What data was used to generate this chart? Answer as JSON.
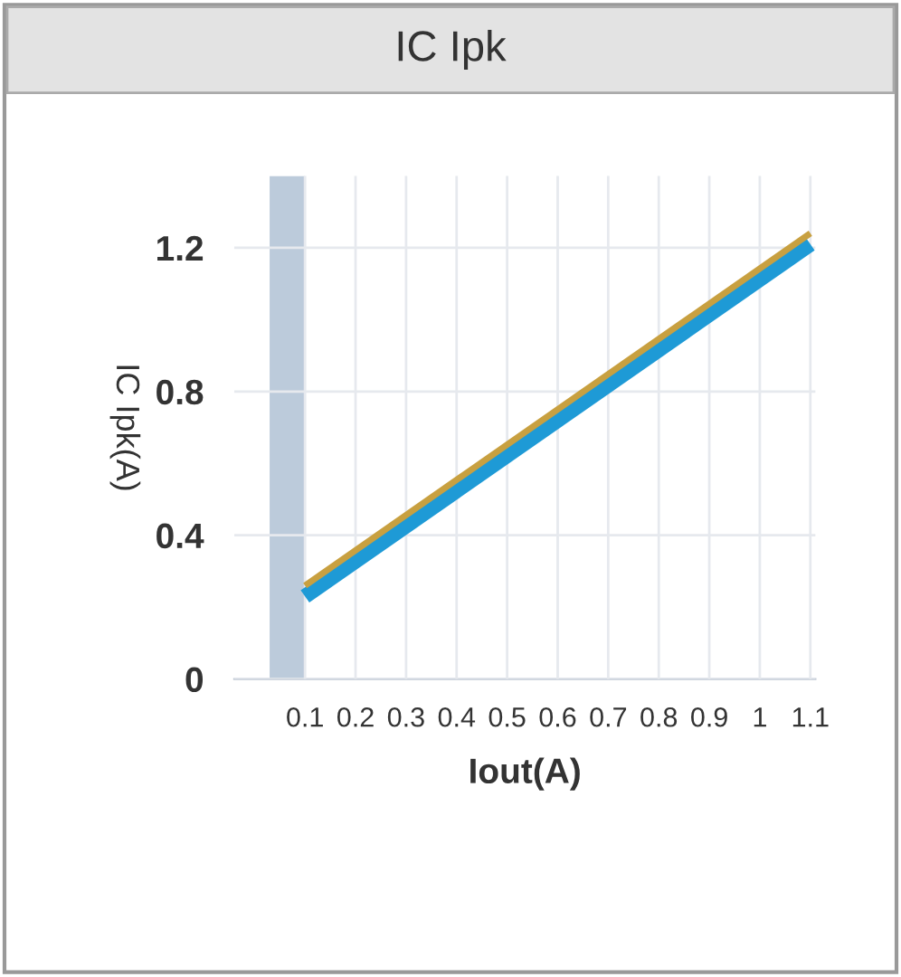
{
  "chart_data": {
    "type": "line",
    "title": "IC Ipk",
    "xlabel": "Iout(A)",
    "ylabel": "IC Ipk(A)",
    "x": [
      0.1,
      1.1
    ],
    "series": [
      {
        "color": "#1e9ad6",
        "values": [
          0.23,
          1.21
        ]
      },
      {
        "color": "#c8a040",
        "values": [
          0.26,
          1.24
        ]
      }
    ],
    "xlim": [
      -0.04,
      1.11
    ],
    "ylim": [
      0,
      1.4
    ],
    "xticks": [
      0.1,
      0.2,
      0.3,
      0.4,
      0.5,
      0.6,
      0.7,
      0.8,
      0.9,
      1,
      1.1
    ],
    "yticks": [
      0,
      0.4,
      0.8,
      1.2
    ],
    "bands": [
      {
        "axis": "x",
        "from": 0.03,
        "to": 0.1,
        "color": "#bccbdb"
      }
    ],
    "grid": true,
    "legend": false
  }
}
